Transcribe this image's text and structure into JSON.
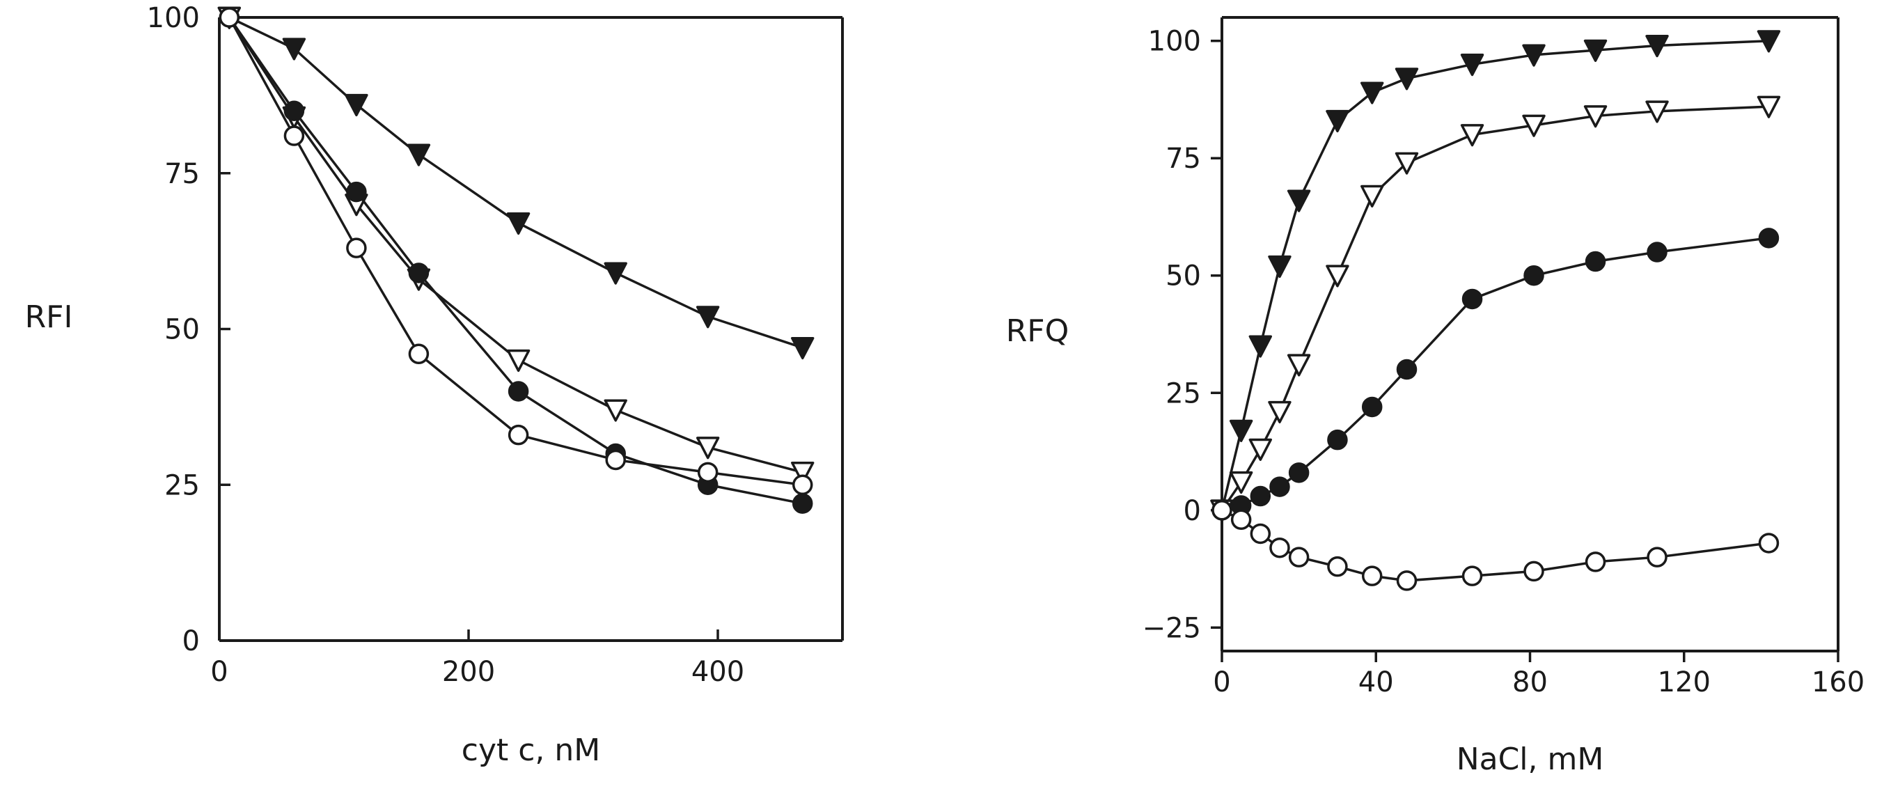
{
  "chart_data": [
    {
      "type": "line",
      "title": "",
      "xlabel": "cyt c, nM",
      "ylabel": "RFI",
      "xlim": [
        0,
        500
      ],
      "ylim": [
        0,
        100
      ],
      "xticks": [
        0,
        200,
        400
      ],
      "xtick_labels": [
        "0",
        "200",
        "400"
      ],
      "yticks": [
        0,
        25,
        50,
        75,
        100
      ],
      "ytick_labels": [
        "0",
        "25",
        "50",
        "75",
        "100"
      ],
      "grid": false,
      "series": [
        {
          "name": "filled triangles",
          "marker": "triangle-down-filled",
          "x": [
            8,
            60,
            110,
            160,
            240,
            318,
            392,
            468
          ],
          "y": [
            100,
            95,
            86,
            78,
            67,
            59,
            52,
            47
          ]
        },
        {
          "name": "open triangles",
          "marker": "triangle-down-open",
          "x": [
            8,
            60,
            110,
            160,
            240,
            318,
            392,
            468
          ],
          "y": [
            100,
            84,
            70,
            58,
            45,
            37,
            31,
            27
          ]
        },
        {
          "name": "filled circles",
          "marker": "circle-filled",
          "x": [
            8,
            60,
            110,
            160,
            240,
            318,
            392,
            468
          ],
          "y": [
            100,
            85,
            72,
            59,
            40,
            30,
            25,
            22
          ]
        },
        {
          "name": "open circles",
          "marker": "circle-open",
          "x": [
            8,
            60,
            110,
            160,
            240,
            318,
            392,
            468
          ],
          "y": [
            100,
            81,
            63,
            46,
            33,
            29,
            27,
            25
          ]
        }
      ]
    },
    {
      "type": "line",
      "title": "",
      "xlabel": "NaCl, mM",
      "ylabel": "RFQ",
      "xlim": [
        0,
        160
      ],
      "ylim": [
        -30,
        105
      ],
      "xticks": [
        0,
        40,
        80,
        120,
        160
      ],
      "xtick_labels": [
        "0",
        "40",
        "80",
        "120",
        "160"
      ],
      "yticks": [
        -25,
        0,
        25,
        50,
        75,
        100
      ],
      "ytick_labels": [
        "−25",
        "0",
        "25",
        "50",
        "75",
        "100"
      ],
      "grid": false,
      "series": [
        {
          "name": "filled triangles",
          "marker": "triangle-down-filled",
          "x": [
            0,
            5,
            10,
            15,
            20,
            30,
            39,
            48,
            65,
            81,
            97,
            113,
            142
          ],
          "y": [
            0,
            17,
            35,
            52,
            66,
            83,
            89,
            92,
            95,
            97,
            98,
            99,
            100
          ]
        },
        {
          "name": "open triangles",
          "marker": "triangle-down-open",
          "x": [
            0,
            5,
            10,
            15,
            20,
            30,
            39,
            48,
            65,
            81,
            97,
            113,
            142
          ],
          "y": [
            0,
            6,
            13,
            21,
            31,
            50,
            67,
            74,
            80,
            82,
            84,
            85,
            86
          ]
        },
        {
          "name": "filled circles",
          "marker": "circle-filled",
          "x": [
            0,
            5,
            10,
            15,
            20,
            30,
            39,
            48,
            65,
            81,
            97,
            113,
            142
          ],
          "y": [
            0,
            1,
            3,
            5,
            8,
            15,
            22,
            30,
            45,
            50,
            53,
            55,
            58
          ]
        },
        {
          "name": "open circles",
          "marker": "circle-open",
          "x": [
            0,
            5,
            10,
            15,
            20,
            30,
            39,
            48,
            65,
            81,
            97,
            113,
            142
          ],
          "y": [
            0,
            -2,
            -5,
            -8,
            -10,
            -12,
            -14,
            -15,
            -14,
            -13,
            -11,
            -10,
            -7
          ]
        }
      ]
    }
  ]
}
